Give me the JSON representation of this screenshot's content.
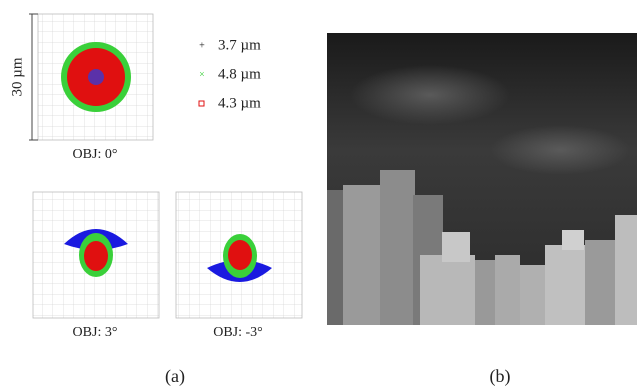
{
  "scale_label": "30 µm",
  "legend": [
    "3.7 µm",
    "4.8 µm",
    "4.3 µm"
  ],
  "spots": [
    "OBJ: 0°",
    "OBJ: 3°",
    "OBJ: -3°"
  ],
  "panel_labels": [
    "(a)",
    "(b)"
  ]
}
